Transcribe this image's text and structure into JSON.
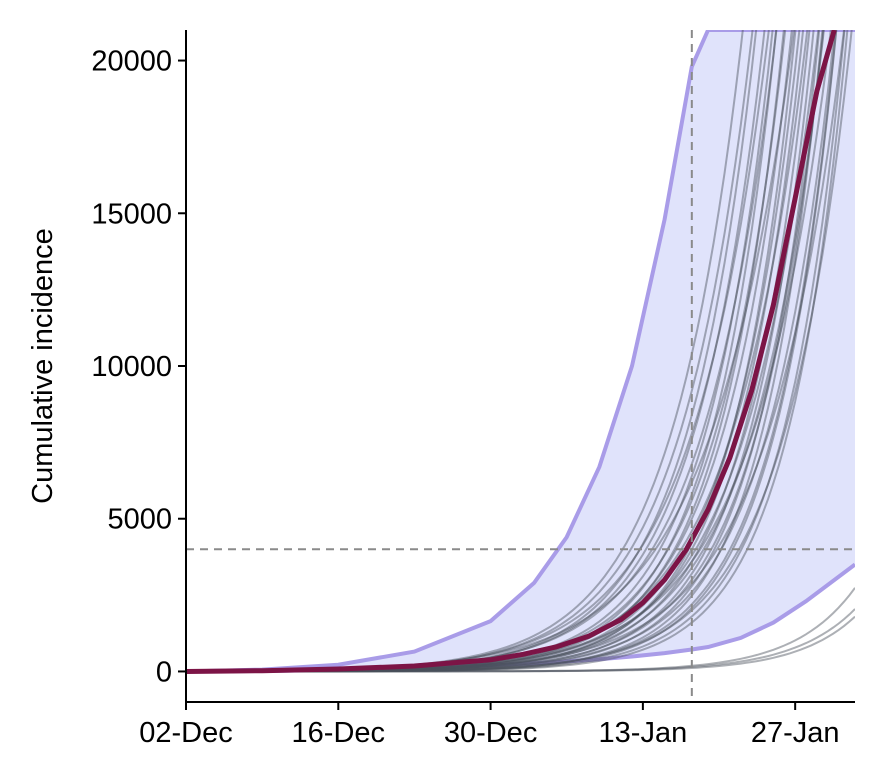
{
  "chart_data": {
    "type": "line",
    "title": "",
    "xlabel": "",
    "ylabel": "Cumulative incidence",
    "x_tick_labels": [
      "02-Dec",
      "16-Dec",
      "30-Dec",
      "13-Jan",
      "27-Jan"
    ],
    "x_tick_days": [
      0,
      14,
      28,
      42,
      56
    ],
    "xlim_days": [
      0,
      61.5
    ],
    "y_tick_values": [
      0,
      5000,
      10000,
      15000,
      20000
    ],
    "ylim": [
      -1000,
      21000
    ],
    "grid": false,
    "legend": "none",
    "reference_lines": {
      "vertical_day": 46.5,
      "horizontal_value": 4000
    },
    "ribbon": {
      "x_days": [
        0,
        7,
        14,
        21,
        28,
        32,
        35,
        38,
        41,
        44,
        46.5,
        48,
        51,
        54,
        57,
        61.5
      ],
      "upper": [
        0,
        60,
        220,
        650,
        1650,
        2900,
        4400,
        6700,
        10000,
        14800,
        19800,
        21000,
        21000,
        21000,
        21000,
        21000
      ],
      "lower": [
        0,
        15,
        45,
        110,
        200,
        270,
        330,
        400,
        490,
        600,
        720,
        800,
        1100,
        1600,
        2300,
        3500
      ]
    },
    "median": {
      "x_days": [
        0,
        7,
        14,
        21,
        28,
        31,
        34,
        37,
        40,
        42,
        44,
        46,
        48,
        50,
        52,
        54,
        56,
        58,
        59.6
      ],
      "values": [
        0,
        25,
        80,
        180,
        380,
        560,
        800,
        1150,
        1700,
        2250,
        3000,
        4000,
        5300,
        7000,
        9200,
        12000,
        15500,
        19000,
        21000
      ]
    },
    "simulations": [
      {
        "growth": 0.162,
        "scale": 1.0
      },
      {
        "growth": 0.17,
        "scale": 0.55
      },
      {
        "growth": 0.175,
        "scale": 0.45
      },
      {
        "growth": 0.178,
        "scale": 0.62
      },
      {
        "growth": 0.165,
        "scale": 1.3
      },
      {
        "growth": 0.16,
        "scale": 1.6
      },
      {
        "growth": 0.168,
        "scale": 0.8
      },
      {
        "growth": 0.155,
        "scale": 2.1
      },
      {
        "growth": 0.172,
        "scale": 0.7
      },
      {
        "growth": 0.158,
        "scale": 1.1
      },
      {
        "growth": 0.15,
        "scale": 2.6
      },
      {
        "growth": 0.163,
        "scale": 0.9
      },
      {
        "growth": 0.18,
        "scale": 0.4
      },
      {
        "growth": 0.166,
        "scale": 1.45
      },
      {
        "growth": 0.156,
        "scale": 1.25
      },
      {
        "growth": 0.152,
        "scale": 1.9
      },
      {
        "growth": 0.174,
        "scale": 0.52
      },
      {
        "growth": 0.161,
        "scale": 0.75
      },
      {
        "growth": 0.148,
        "scale": 2.3
      },
      {
        "growth": 0.169,
        "scale": 1.05
      },
      {
        "growth": 0.145,
        "scale": 1.7
      },
      {
        "growth": 0.154,
        "scale": 1.4
      },
      {
        "growth": 0.159,
        "scale": 0.65
      },
      {
        "growth": 0.14,
        "scale": 1.95
      },
      {
        "growth": 0.147,
        "scale": 0.95
      },
      {
        "growth": 0.143,
        "scale": 1.15
      },
      {
        "growth": 0.15,
        "scale": 0.85
      },
      {
        "growth": 0.16,
        "scale": 0.5
      },
      {
        "growth": 0.142,
        "scale": 0.72
      },
      {
        "growth": 0.138,
        "scale": 0.9
      },
      {
        "growth": 0.13,
        "scale": 1.55
      },
      {
        "growth": 0.18,
        "scale": 0.046
      },
      {
        "growth": 0.175,
        "scale": 0.037
      },
      {
        "growth": 0.185,
        "scale": 0.028
      }
    ],
    "colors": {
      "ribbon_fill": "#e0e3fb",
      "ribbon_edge": "#a99ce8",
      "median_line": "#7c1446",
      "simulation_line": "#4a4f5c",
      "reference_line": "#8a8a8a",
      "axis": "#000000"
    }
  }
}
